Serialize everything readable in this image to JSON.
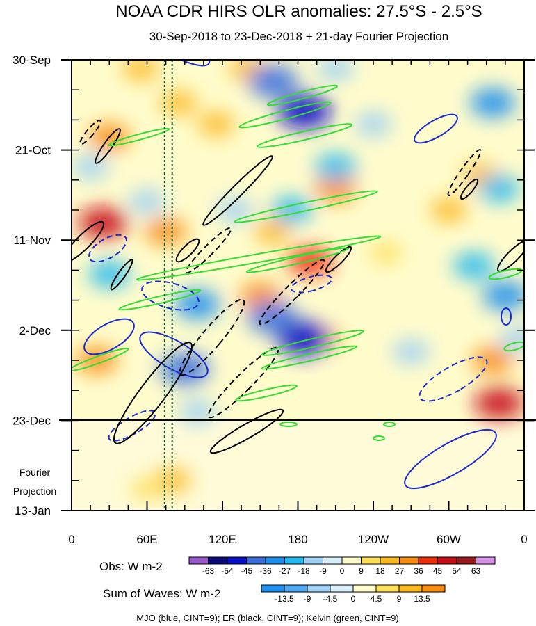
{
  "chart_data": {
    "type": "heatmap",
    "title": "NOAA CDR HIRS OLR anomalies: 27.5°S - 2.5°S",
    "subtitle": "30-Sep-2018 to 23-Dec-2018 + 21-day Fourier Projection",
    "x_ticks": [
      "0",
      "60E",
      "120E",
      "180",
      "120W",
      "60W",
      "0"
    ],
    "y_ticks": [
      "30-Sep",
      "21-Oct",
      "11-Nov",
      "2-Dec",
      "23-Dec",
      "13-Jan"
    ],
    "projection_label_1": "Fourier",
    "projection_label_2": "Projection",
    "obs_colorbar": {
      "label": "Obs: W m-2",
      "ticks": [
        "-63",
        "-54",
        "-45",
        "-36",
        "-27",
        "-18",
        "-9",
        "0",
        "9",
        "18",
        "27",
        "36",
        "45",
        "54",
        "63"
      ],
      "colors": [
        "#9b59d0",
        "#0a0a7a",
        "#0a10c8",
        "#3b6fe0",
        "#1f8fef",
        "#22b8f0",
        "#9fd0f5",
        "#d8f0fb",
        "#fffccc",
        "#fce05a",
        "#fbb820",
        "#f78a10",
        "#f0300a",
        "#c8101a",
        "#9a1a20",
        "#d890e8"
      ]
    },
    "waves_colorbar": {
      "label": "Sum of Waves: W m-2",
      "ticks": [
        "-13.5",
        "-9",
        "-4.5",
        "0",
        "4.5",
        "9",
        "13.5"
      ],
      "colors": [
        "#1f8fef",
        "#4ea8f2",
        "#9fd0f5",
        "#d8f0fb",
        "#fffccc",
        "#fce05a",
        "#fbb820",
        "#f78a10"
      ]
    },
    "footer": "MJO (blue, CINT=9); ER (black, CINT=9); Kelvin (green, CINT=9)",
    "x_range_deg": [
      0,
      360
    ],
    "time_range_days": [
      0,
      105
    ],
    "observed_end_day": 84,
    "vertical_markers_deg": [
      74,
      80
    ],
    "series": [
      {
        "name": "MJO",
        "color": "#1a2bd0"
      },
      {
        "name": "ER",
        "color": "#000000"
      },
      {
        "name": "Kelvin",
        "color": "#33dd33"
      }
    ],
    "anomaly_cells": [
      {
        "lon": 25,
        "day": 38,
        "value": 45
      },
      {
        "lon": 20,
        "day": 70,
        "value": 27
      },
      {
        "lon": 55,
        "day": 2,
        "value": 18
      },
      {
        "lon": 85,
        "day": 10,
        "value": 18
      },
      {
        "lon": 75,
        "day": 40,
        "value": 27
      },
      {
        "lon": 115,
        "day": 15,
        "value": 18
      },
      {
        "lon": 150,
        "day": 55,
        "value": 27
      },
      {
        "lon": 160,
        "day": 40,
        "value": 18
      },
      {
        "lon": 210,
        "day": 30,
        "value": 27
      },
      {
        "lon": 190,
        "day": 47,
        "value": 36
      },
      {
        "lon": 200,
        "day": 65,
        "value": 18
      },
      {
        "lon": 80,
        "day": 98,
        "value": 18
      },
      {
        "lon": 300,
        "day": 35,
        "value": 18
      },
      {
        "lon": 335,
        "day": 70,
        "value": 27
      },
      {
        "lon": 340,
        "day": 80,
        "value": 45
      },
      {
        "lon": 325,
        "day": 27,
        "value": 18
      },
      {
        "lon": 140,
        "day": 2,
        "value": 18
      },
      {
        "lon": 250,
        "day": 45,
        "value": 9
      },
      {
        "lon": 30,
        "day": 18,
        "value": 27
      },
      {
        "lon": 60,
        "day": 100,
        "value": 9
      },
      {
        "lon": 160,
        "day": 5,
        "value": -45
      },
      {
        "lon": 185,
        "day": 12,
        "value": -54
      },
      {
        "lon": 160,
        "day": 60,
        "value": -45
      },
      {
        "lon": 185,
        "day": 65,
        "value": -54
      },
      {
        "lon": 90,
        "day": 72,
        "value": -45
      },
      {
        "lon": 335,
        "day": 10,
        "value": -36
      },
      {
        "lon": 345,
        "day": 55,
        "value": -36
      },
      {
        "lon": 340,
        "day": 30,
        "value": -27
      },
      {
        "lon": 210,
        "day": 25,
        "value": -27
      },
      {
        "lon": 100,
        "day": 57,
        "value": -36
      },
      {
        "lon": 30,
        "day": 50,
        "value": -27
      },
      {
        "lon": 60,
        "day": 33,
        "value": -18
      },
      {
        "lon": 270,
        "day": 68,
        "value": -18
      },
      {
        "lon": 130,
        "day": 35,
        "value": -18
      },
      {
        "lon": 175,
        "day": 35,
        "value": -27
      },
      {
        "lon": 240,
        "day": 15,
        "value": -18
      },
      {
        "lon": 210,
        "day": 2,
        "value": -18
      },
      {
        "lon": 15,
        "day": 25,
        "value": -18
      },
      {
        "lon": 320,
        "day": 48,
        "value": -27
      },
      {
        "lon": 355,
        "day": 65,
        "value": -18
      },
      {
        "lon": 100,
        "day": 82,
        "value": -18
      }
    ]
  }
}
